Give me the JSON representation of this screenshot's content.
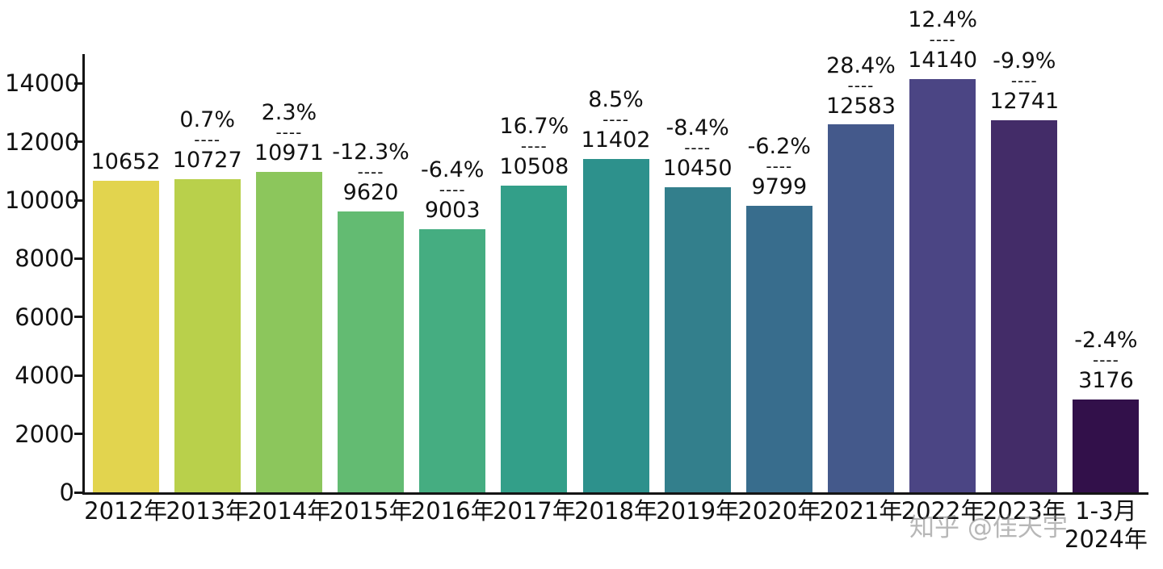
{
  "chart_data": {
    "type": "bar",
    "title": "",
    "xlabel": "",
    "ylabel": "",
    "categories": [
      "2012年",
      "2013年",
      "2014年",
      "2015年",
      "2016年",
      "2017年",
      "2018年",
      "2019年",
      "2020年",
      "2021年",
      "2022年",
      "2023年",
      "1-3月\n2024年"
    ],
    "values": [
      10652,
      10727,
      10971,
      9620,
      9003,
      10508,
      11402,
      10450,
      9799,
      12583,
      14140,
      12741,
      3176
    ],
    "pct_change": [
      null,
      "0.7%",
      "2.3%",
      "-12.3%",
      "-6.4%",
      "16.7%",
      "8.5%",
      "-8.4%",
      "-6.2%",
      "28.4%",
      "12.4%",
      "-9.9%",
      "-2.4%"
    ],
    "annotation_separator": "----",
    "bar_colors": [
      "#e2d44e",
      "#b9d04b",
      "#8cc65c",
      "#63bb72",
      "#45ad81",
      "#339f89",
      "#2d918c",
      "#337f8c",
      "#386d8d",
      "#44598b",
      "#4b4584",
      "#432c68",
      "#32104a"
    ],
    "ylim": [
      0,
      15000
    ],
    "yticks": [
      0,
      2000,
      4000,
      6000,
      8000,
      10000,
      12000,
      14000
    ],
    "grid": false,
    "legend": "none"
  },
  "watermark": "知乎 @佳天宇"
}
